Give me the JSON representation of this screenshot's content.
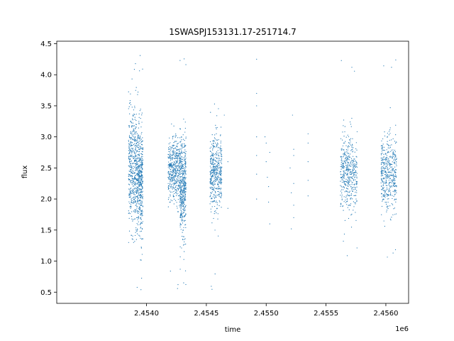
{
  "chart_data": {
    "type": "scatter",
    "title": "1SWASPJ153131.17-251714.7",
    "xlabel": "time",
    "ylabel": "flux",
    "x_offset_label": "1e6",
    "xlim": [
      2.45325,
      2.45619
    ],
    "ylim": [
      0.32,
      4.54
    ],
    "x_ticks": [
      2.454,
      2.4545,
      2.455,
      2.4555,
      2.456
    ],
    "x_tick_labels": [
      "2.4540",
      "2.4545",
      "2.4550",
      "2.4555",
      "2.4560"
    ],
    "y_ticks": [
      0.5,
      1.0,
      1.5,
      2.0,
      2.5,
      3.0,
      3.5,
      4.0,
      4.5
    ],
    "y_tick_labels": [
      "0.5",
      "1.0",
      "1.5",
      "2.0",
      "2.5",
      "3.0",
      "3.5",
      "4.0",
      "4.5"
    ],
    "grid": false,
    "marker_color": "#1f77b4",
    "marker": "small dot",
    "series": [
      {
        "x_range": [
          2.45385,
          2.45392
        ],
        "y_center": 2.5,
        "y_spread": 0.45,
        "y_min": 1.3,
        "y_max": 4.2
      },
      {
        "x_range": [
          2.45392,
          2.45397
        ],
        "y_center": 2.3,
        "y_spread": 0.45,
        "y_min": 0.5,
        "y_max": 4.35
      },
      {
        "x_range": [
          2.45418,
          2.45428
        ],
        "y_center": 2.45,
        "y_spread": 0.25,
        "y_min": 0.55,
        "y_max": 3.3
      },
      {
        "x_range": [
          2.45428,
          2.45433
        ],
        "y_center": 2.2,
        "y_spread": 0.4,
        "y_min": 0.6,
        "y_max": 4.3
      },
      {
        "x_range": [
          2.45453,
          2.45463
        ],
        "y_center": 2.4,
        "y_spread": 0.3,
        "y_min": 0.5,
        "y_max": 3.6
      },
      {
        "x_range": [
          2.45562,
          2.45576
        ],
        "y_center": 2.45,
        "y_spread": 0.3,
        "y_min": 1.05,
        "y_max": 4.35
      },
      {
        "x_range": [
          2.45596,
          2.45609
        ],
        "y_center": 2.4,
        "y_spread": 0.3,
        "y_min": 1.05,
        "y_max": 4.35
      }
    ],
    "sparse_points": [
      {
        "x": 2.45465,
        "y": 3.35
      },
      {
        "x": 2.45468,
        "y": 2.6
      },
      {
        "x": 2.45468,
        "y": 1.85
      },
      {
        "x": 2.45492,
        "y": 4.25
      },
      {
        "x": 2.45492,
        "y": 3.7
      },
      {
        "x": 2.45492,
        "y": 3.5
      },
      {
        "x": 2.45492,
        "y": 3.0
      },
      {
        "x": 2.45492,
        "y": 2.7
      },
      {
        "x": 2.45492,
        "y": 2.4
      },
      {
        "x": 2.45492,
        "y": 2.0
      },
      {
        "x": 2.45499,
        "y": 3.0
      },
      {
        "x": 2.455,
        "y": 2.9
      },
      {
        "x": 2.455,
        "y": 2.6
      },
      {
        "x": 2.45501,
        "y": 2.35
      },
      {
        "x": 2.45502,
        "y": 2.2
      },
      {
        "x": 2.45503,
        "y": 2.75
      },
      {
        "x": 2.45502,
        "y": 1.95
      },
      {
        "x": 2.45503,
        "y": 1.6
      },
      {
        "x": 2.4552,
        "y": 2.5
      },
      {
        "x": 2.45521,
        "y": 2.1
      },
      {
        "x": 2.45521,
        "y": 1.52
      },
      {
        "x": 2.45522,
        "y": 3.35
      },
      {
        "x": 2.45523,
        "y": 2.8
      },
      {
        "x": 2.45523,
        "y": 2.7
      },
      {
        "x": 2.45523,
        "y": 2.25
      },
      {
        "x": 2.45523,
        "y": 1.9
      },
      {
        "x": 2.45523,
        "y": 1.7
      },
      {
        "x": 2.45535,
        "y": 3.05
      },
      {
        "x": 2.45535,
        "y": 2.9
      },
      {
        "x": 2.45535,
        "y": 2.6
      },
      {
        "x": 2.45535,
        "y": 2.3
      },
      {
        "x": 2.45535,
        "y": 2.05
      }
    ]
  }
}
